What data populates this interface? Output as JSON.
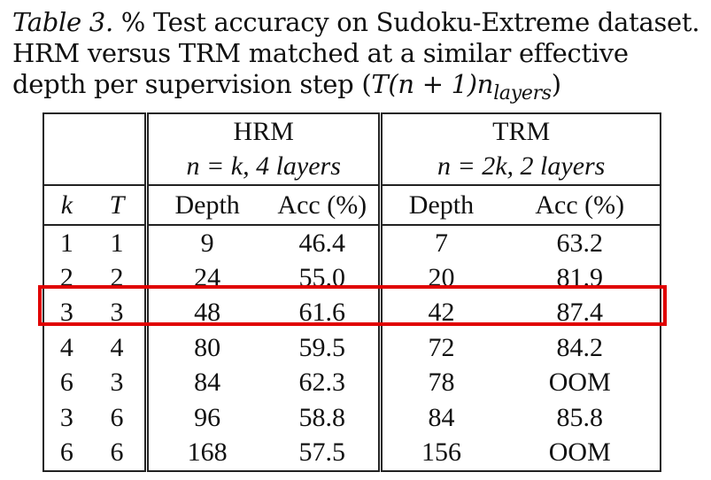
{
  "caption": {
    "label": "Table 3.",
    "text": " % Test accuracy on Sudoku-Extreme dataset. HRM versus TRM matched at a similar effective depth per supervision step (",
    "math": "T(n + 1)n",
    "math_sub": "layers",
    "close": ")"
  },
  "table": {
    "groups": [
      {
        "name": "HRM",
        "config": "n = k, 4 layers"
      },
      {
        "name": "TRM",
        "config": "n = 2k, 2 layers"
      }
    ],
    "headers": [
      "k",
      "T",
      "Depth",
      "Acc (%)",
      "Depth",
      "Acc (%)"
    ],
    "rows": [
      [
        "1",
        "1",
        "9",
        "46.4",
        "7",
        "63.2"
      ],
      [
        "2",
        "2",
        "24",
        "55.0",
        "20",
        "81.9"
      ],
      [
        "3",
        "3",
        "48",
        "61.6",
        "42",
        "87.4"
      ],
      [
        "4",
        "4",
        "80",
        "59.5",
        "72",
        "84.2"
      ],
      [
        "6",
        "3",
        "84",
        "62.3",
        "78",
        "OOM"
      ],
      [
        "3",
        "6",
        "96",
        "58.8",
        "84",
        "85.8"
      ],
      [
        "6",
        "6",
        "168",
        "57.5",
        "156",
        "OOM"
      ]
    ],
    "highlighted_row_index": 2,
    "highlight_color": "#e00000"
  }
}
